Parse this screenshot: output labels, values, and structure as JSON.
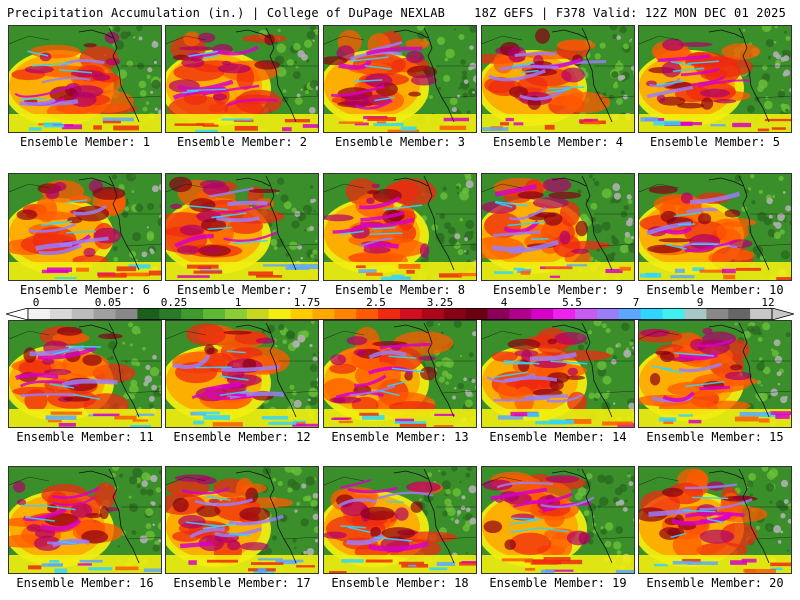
{
  "header": {
    "title": "Precipitation Accumulation (in.) | College of DuPage NEXLAB",
    "run_info": "18Z GEFS | F378 Valid: 12Z MON DEC 01 2025"
  },
  "colorbar": {
    "labels": [
      "0",
      "0.05",
      "0.25",
      "1",
      "1.75",
      "2.5",
      "3.25",
      "4",
      "5.5",
      "7",
      "9",
      "12"
    ],
    "colors": [
      "#f2f2f2",
      "#d8d8d8",
      "#bcbcbc",
      "#a0a0a0",
      "#888888",
      "#1c5f1c",
      "#2a7a2a",
      "#3e9a2c",
      "#5fb834",
      "#8ccc34",
      "#c8d820",
      "#f2ee10",
      "#ffcc00",
      "#ffa800",
      "#ff8400",
      "#ff5a00",
      "#ef2a10",
      "#d20f1e",
      "#b0061c",
      "#8a0014",
      "#6a0012",
      "#8c0058",
      "#b0008c",
      "#d800c8",
      "#ee22ee",
      "#c85cf0",
      "#9a7ef8",
      "#5ca8ff",
      "#2fd6ff",
      "#40f0f0",
      "#a8c8c8",
      "#888888",
      "#666666",
      "#c8c8c8"
    ]
  },
  "panels": [
    {
      "caption": "Ensemble Member: 1"
    },
    {
      "caption": "Ensemble Member: 2"
    },
    {
      "caption": "Ensemble Member: 3"
    },
    {
      "caption": "Ensemble Member: 4"
    },
    {
      "caption": "Ensemble Member: 5"
    },
    {
      "caption": "Ensemble Member: 6"
    },
    {
      "caption": "Ensemble Member: 7"
    },
    {
      "caption": "Ensemble Member: 8"
    },
    {
      "caption": "Ensemble Member: 9"
    },
    {
      "caption": "Ensemble Member: 10"
    },
    {
      "caption": "Ensemble Member: 11"
    },
    {
      "caption": "Ensemble Member: 12"
    },
    {
      "caption": "Ensemble Member: 13"
    },
    {
      "caption": "Ensemble Member: 14"
    },
    {
      "caption": "Ensemble Member: 15"
    },
    {
      "caption": "Ensemble Member: 16"
    },
    {
      "caption": "Ensemble Member: 17"
    },
    {
      "caption": "Ensemble Member: 18"
    },
    {
      "caption": "Ensemble Member: 19"
    },
    {
      "caption": "Ensemble Member: 20"
    }
  ]
}
